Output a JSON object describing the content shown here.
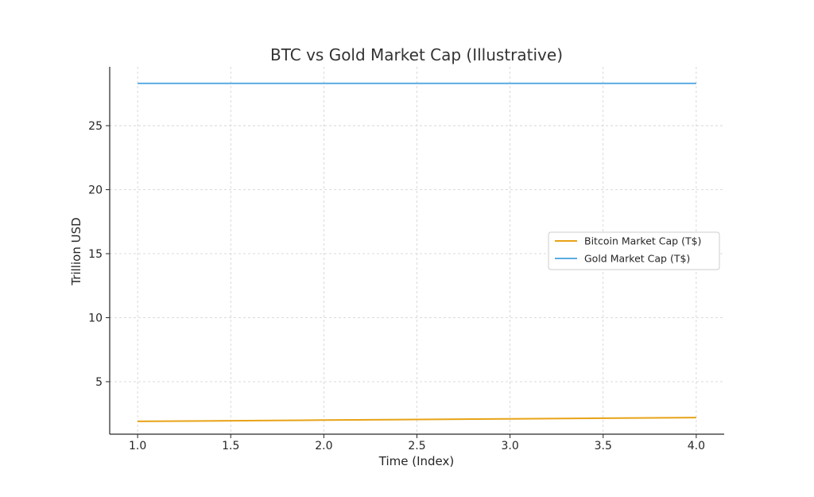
{
  "chart_data": {
    "type": "line",
    "title": "BTC vs Gold Market Cap (Illustrative)",
    "xlabel": "Time (Index)",
    "ylabel": "Trillion USD",
    "x": [
      1,
      2,
      3,
      4
    ],
    "xlim": [
      0.85,
      4.15
    ],
    "ylim": [
      0.9,
      29.6
    ],
    "xticks": [
      1.0,
      1.5,
      2.0,
      2.5,
      3.0,
      3.5,
      4.0
    ],
    "xtick_labels": [
      "1.0",
      "1.5",
      "2.0",
      "2.5",
      "3.0",
      "3.5",
      "4.0"
    ],
    "yticks": [
      5,
      10,
      15,
      20,
      25
    ],
    "ytick_labels": [
      "5",
      "10",
      "15",
      "20",
      "25"
    ],
    "grid": true,
    "legend_position": "center-right",
    "series": [
      {
        "name": "Bitcoin Market Cap (T$)",
        "color": "#E8A317",
        "values": [
          1.9,
          2.0,
          2.1,
          2.2
        ]
      },
      {
        "name": "Gold Market Cap (T$)",
        "color": "#5DADE2",
        "values": [
          28.3,
          28.3,
          28.3,
          28.3
        ]
      }
    ]
  }
}
